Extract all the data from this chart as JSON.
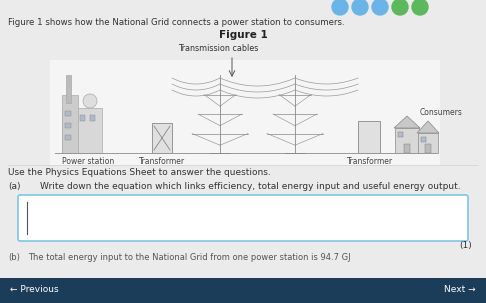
{
  "bg_color": "#ebebeb",
  "title_text": "Figure 1 shows how the National Grid connects a power station to consumers.",
  "fig1_label": "Figure 1",
  "cables_label": "Transmission cables",
  "power_station_label": "Power station",
  "transformer1_label": "Transformer",
  "transformer2_label": "Transformer",
  "consumers_label": "Consumers",
  "instruction_text": "Use the Physics Equations Sheet to answer the questions.",
  "question_a_label": "(a)",
  "question_a_text": "Write down the equation which links efficiency, total energy input and useful energy output.",
  "marks_text": "(1)",
  "part_b_label": "(b)",
  "part_b_text": "The total energy input to the National Grid from one power station is 94.7 GJ",
  "next_text": "Next →",
  "prev_text": "← Previous",
  "answer_box_border": "#7ec8e3",
  "bottom_bar_color": "#1c3d5a",
  "circle_colors": [
    "#6ab4e8",
    "#6ab4e8",
    "#6ab4e8",
    "#5cb85c",
    "#5cb85c"
  ]
}
